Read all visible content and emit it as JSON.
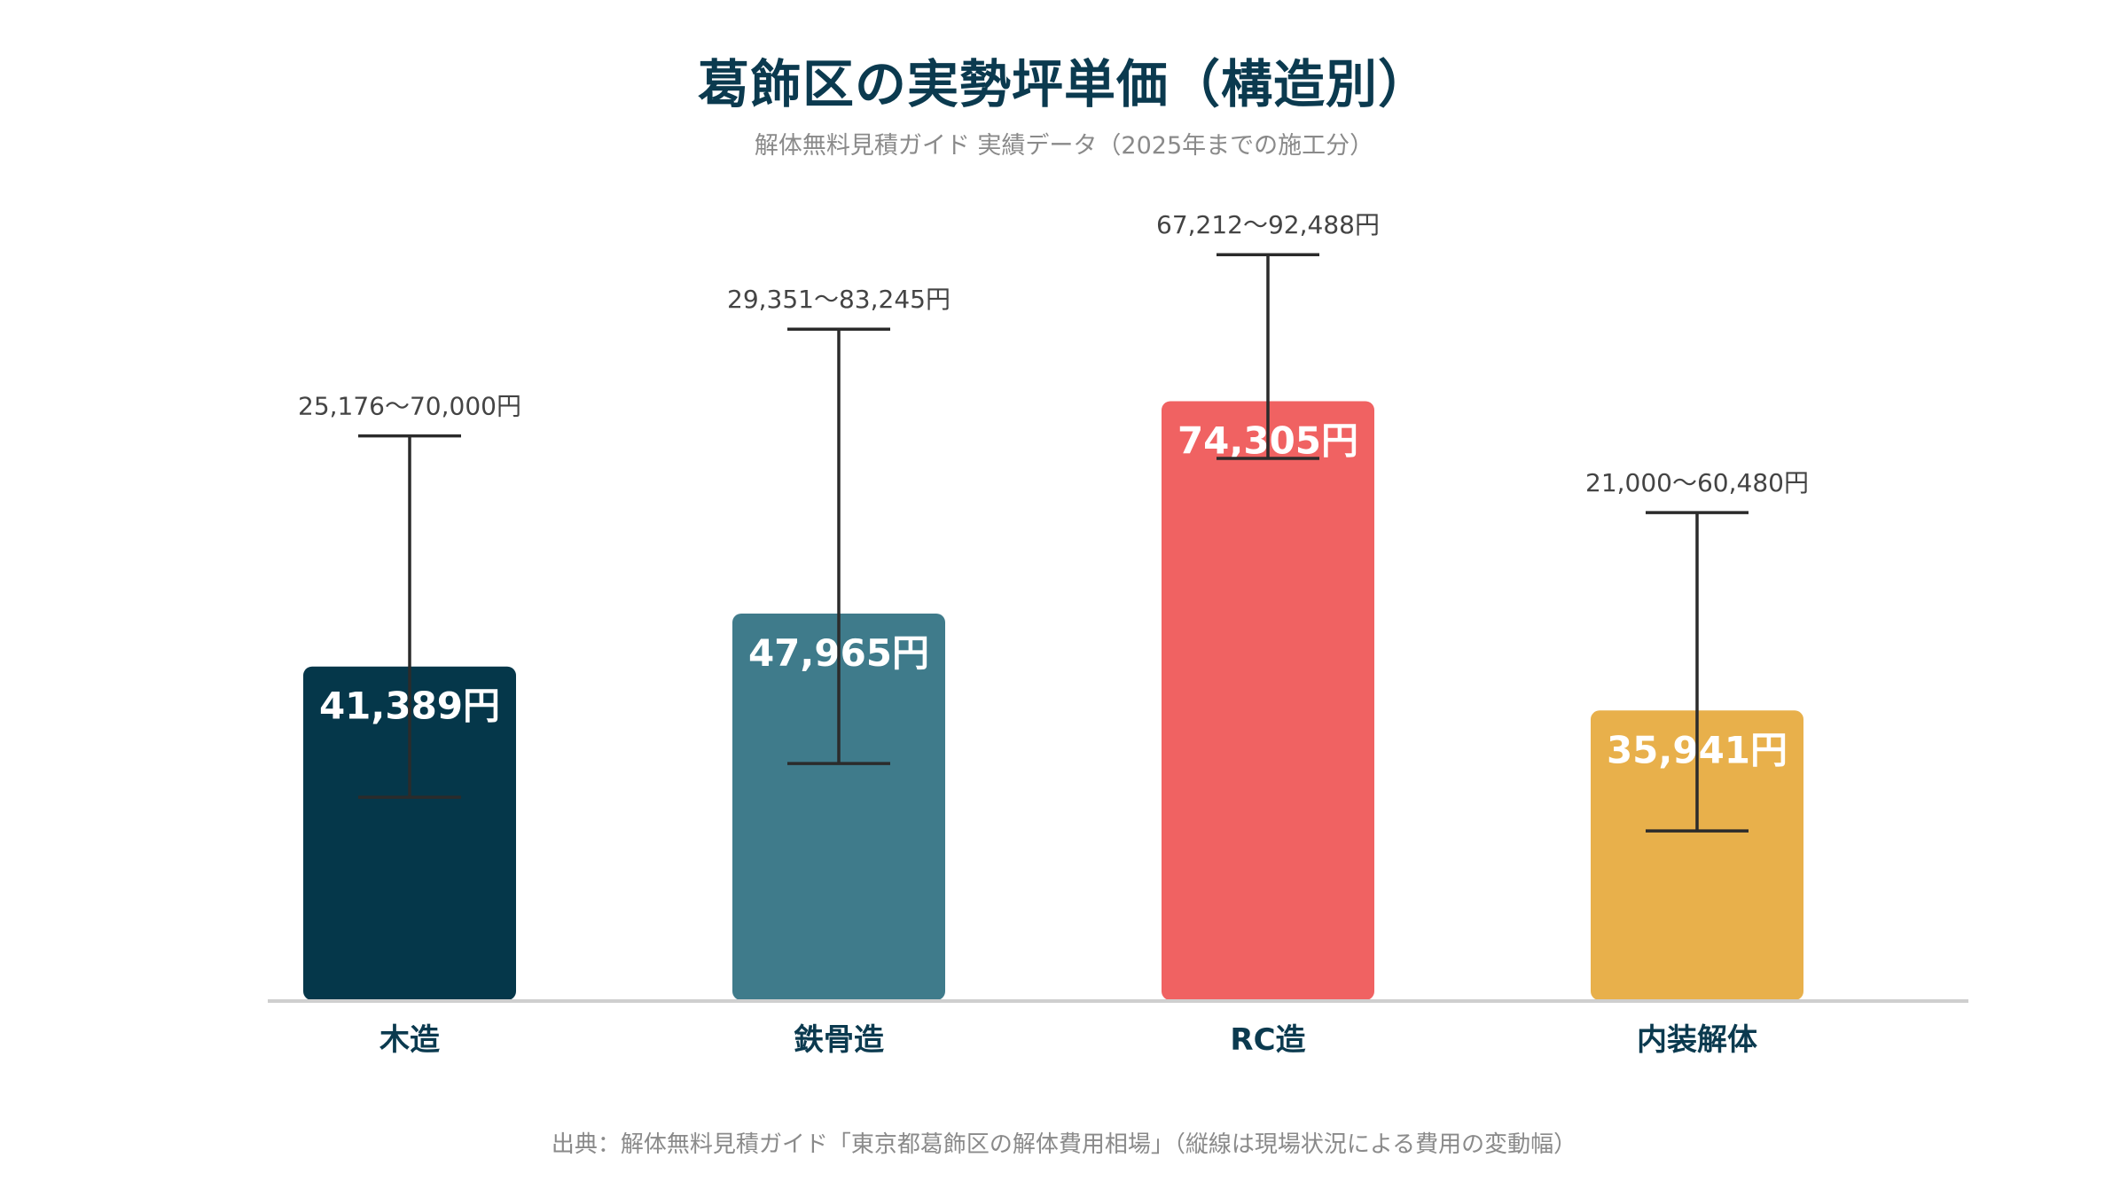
{
  "title": "葛飾区の実勢坪単価（構造別）",
  "subtitle": "解体無料見積ガイド 実績データ（2025年までの施工分）",
  "footnote": "出典：解体無料見積ガイド「東京都葛飾区の解体費用相場」（縦線は現場状況による費用の変動幅）",
  "chart_data": {
    "type": "bar",
    "categories": [
      "木造",
      "鉄骨造",
      "RC造",
      "内装解体"
    ],
    "values": [
      41389,
      47965,
      74305,
      35941
    ],
    "value_labels": [
      "41,389円",
      "47,965円",
      "74,305円",
      "35,941円"
    ],
    "ranges": [
      [
        25176,
        70000
      ],
      [
        29351,
        83245
      ],
      [
        67212,
        92488
      ],
      [
        21000,
        60480
      ]
    ],
    "range_labels": [
      "25,176〜70,000円",
      "29,351〜83,245円",
      "67,212〜92,488円",
      "21,000〜60,480円"
    ],
    "colors": [
      "#05374a",
      "#3f7b8b",
      "#f06262",
      "#e8b04b"
    ],
    "ylim": [
      0,
      110000
    ],
    "grid": false,
    "xlabel": "",
    "ylabel": ""
  }
}
